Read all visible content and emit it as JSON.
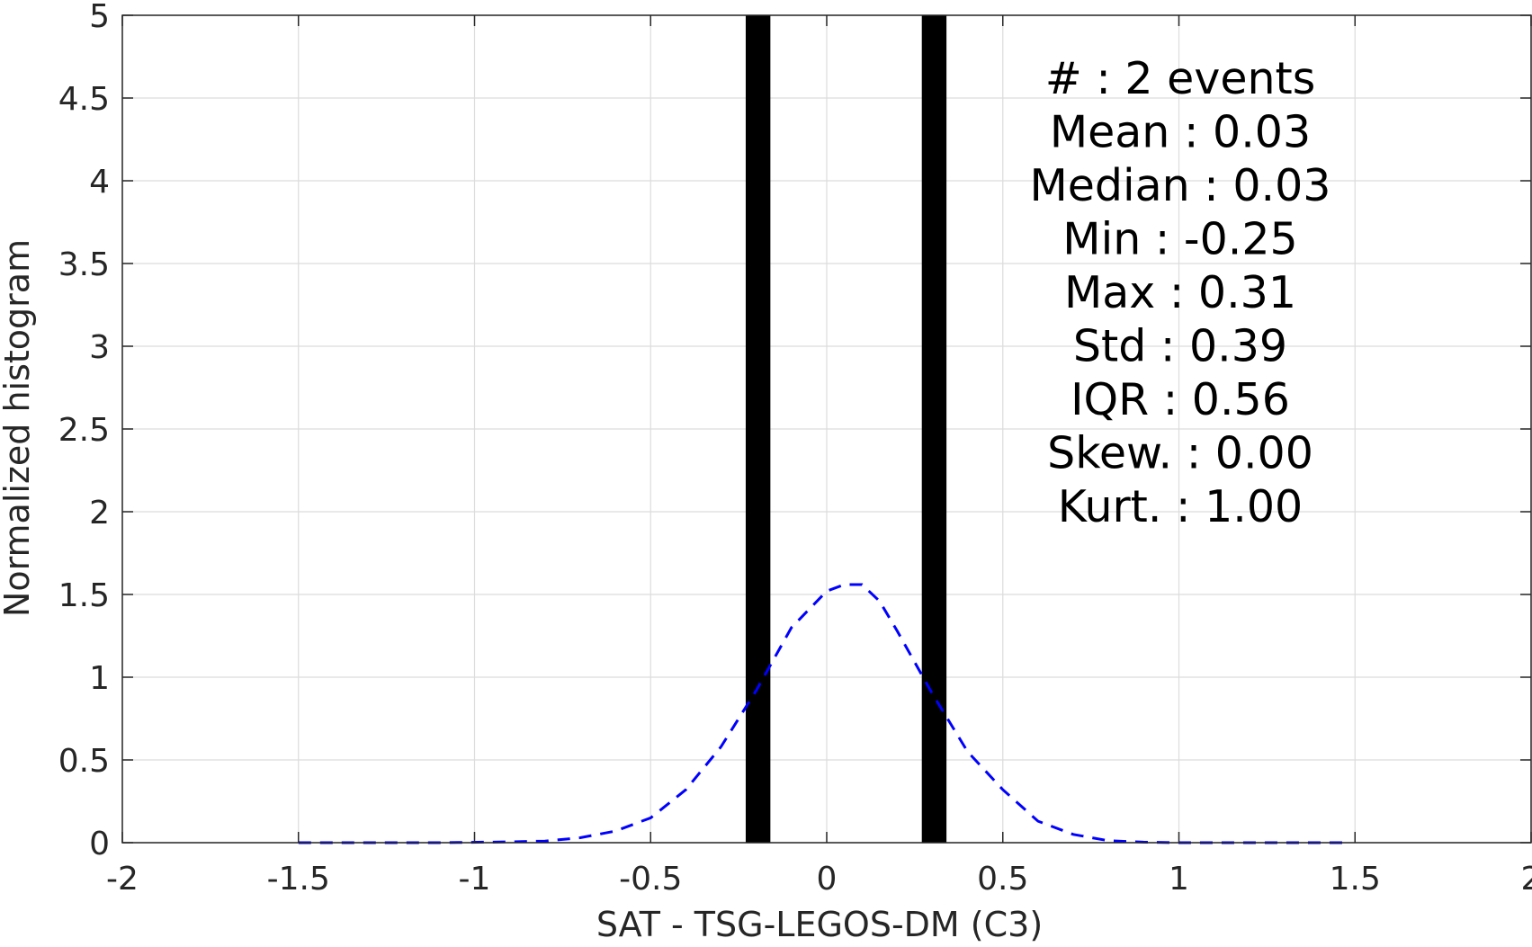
{
  "chart_data": {
    "type": "bar",
    "xlabel": "SAT - TSG-LEGOS-DM (C3)",
    "ylabel": "Normalized histogram",
    "xlim": [
      -2,
      2
    ],
    "ylim": [
      0,
      5
    ],
    "x_ticks": [
      -2,
      -1.5,
      -1,
      -0.5,
      0,
      0.5,
      1,
      1.5,
      2
    ],
    "x_tick_labels": [
      "-2",
      "-1.5",
      "-1",
      "-0.5",
      "0",
      "0.5",
      "1",
      "1.5",
      "2"
    ],
    "y_ticks": [
      0,
      0.5,
      1,
      1.5,
      2,
      2.5,
      3,
      3.5,
      4,
      4.5,
      5
    ],
    "y_tick_labels": [
      "0",
      "0.5",
      "1",
      "1.5",
      "2",
      "2.5",
      "3",
      "3.5",
      "4",
      "4.5",
      "5"
    ],
    "grid": true,
    "histogram": {
      "color": "#000000",
      "bars": [
        {
          "x_min": -0.23,
          "x_max": -0.16,
          "value": 5
        },
        {
          "x_min": 0.27,
          "x_max": 0.34,
          "value": 5
        }
      ]
    },
    "fit_curve": {
      "style": "dashed",
      "color": "#0000ff",
      "x": [
        -1.5,
        -1.3,
        -1.1,
        -0.9,
        -0.8,
        -0.7,
        -0.6,
        -0.5,
        -0.4,
        -0.3,
        -0.2,
        -0.1,
        0.0,
        0.05,
        0.1,
        0.15,
        0.2,
        0.3,
        0.4,
        0.5,
        0.6,
        0.7,
        0.8,
        0.9,
        1.0,
        1.2,
        1.47
      ],
      "y": [
        0.0,
        0.0,
        0.0,
        0.005,
        0.01,
        0.03,
        0.07,
        0.15,
        0.32,
        0.58,
        0.92,
        1.3,
        1.52,
        1.56,
        1.56,
        1.46,
        1.28,
        0.9,
        0.55,
        0.32,
        0.13,
        0.05,
        0.012,
        0.003,
        0.0,
        0.0,
        0.0
      ]
    },
    "stats": [
      {
        "label": "#  ",
        "sep": ":",
        "value": "2 events"
      },
      {
        "label": "Mean",
        "sep": ":",
        "value": "0.03"
      },
      {
        "label": "Median",
        "sep": ":",
        "value": "0.03"
      },
      {
        "label": "Min",
        "sep": ":",
        "value": "-0.25"
      },
      {
        "label": "Max",
        "sep": ":",
        "value": "0.31"
      },
      {
        "label": "Std",
        "sep": ":",
        "value": "0.39"
      },
      {
        "label": "IQR",
        "sep": ":",
        "value": "0.56"
      },
      {
        "label": "Skew.",
        "sep": ":",
        "value": "0.00"
      },
      {
        "label": "Kurt.",
        "sep": ":",
        "value": "1.00"
      }
    ]
  }
}
